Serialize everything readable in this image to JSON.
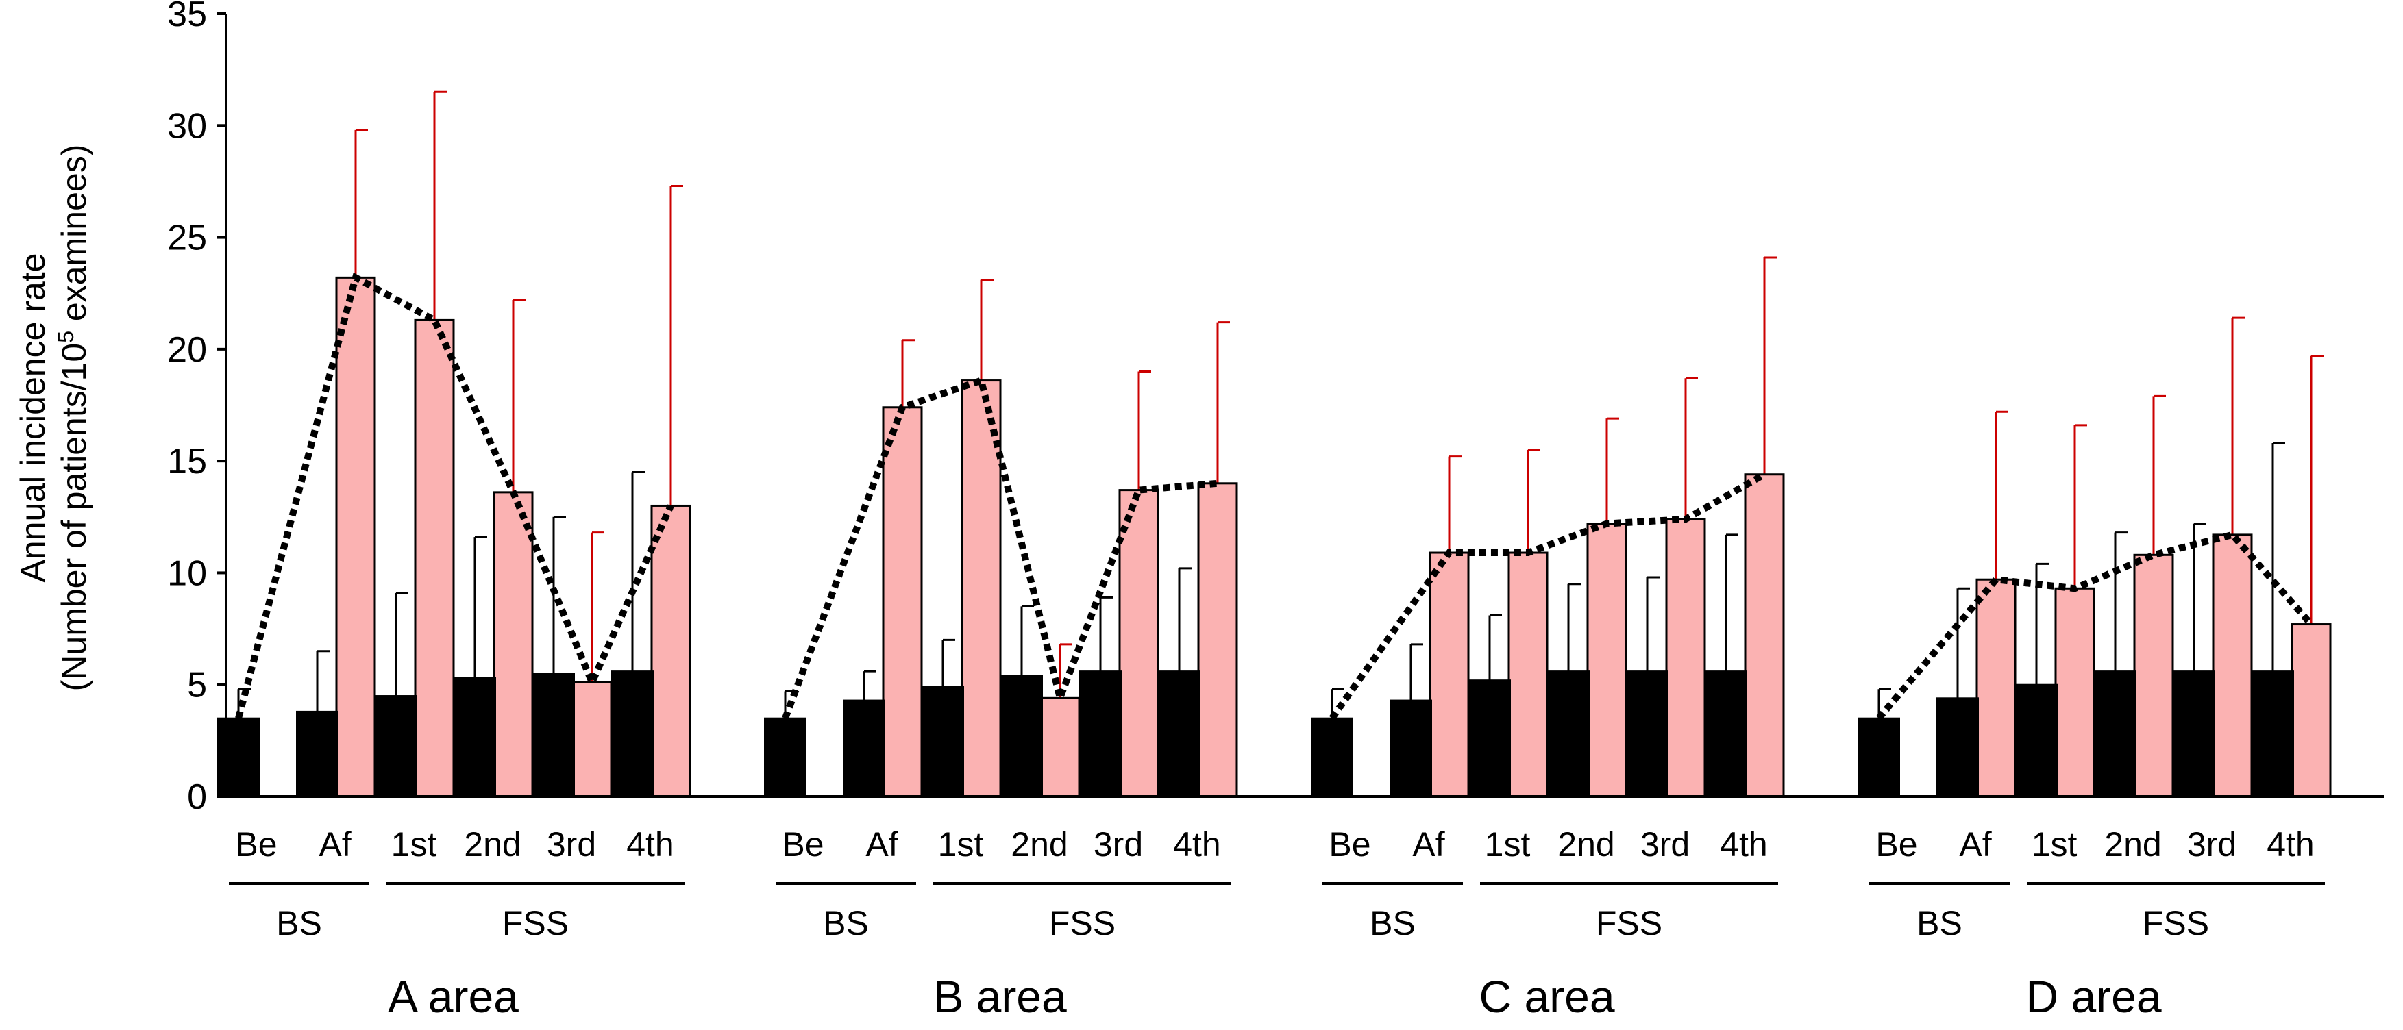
{
  "chart_data": {
    "type": "bar",
    "ylabel_line1": "Annual incidence rate",
    "ylabel_line2_pre": "(Number of patients/10",
    "ylabel_sup": "5",
    "ylabel_line2_post": " examinees)",
    "ylim": [
      0,
      35
    ],
    "yticks": [
      "0",
      "5",
      "10",
      "15",
      "20",
      "25",
      "30",
      "35"
    ],
    "categories": [
      "Be",
      "Af",
      "1st",
      "2nd",
      "3rd",
      "4th"
    ],
    "group_labels": [
      "BS",
      "FSS"
    ],
    "colors": {
      "black_bar": "#000000",
      "pink_bar": "#FBB2B2",
      "pink_error": "#CC0000",
      "black_error": "#000000",
      "trend": "#000000"
    },
    "areas": [
      {
        "name": "A area",
        "black": [
          3.5,
          3.8,
          4.5,
          5.3,
          5.5,
          5.6
        ],
        "black_err": [
          4.8,
          6.5,
          9.1,
          11.6,
          12.5,
          14.5
        ],
        "pink": [
          null,
          23.2,
          21.3,
          13.6,
          5.1,
          13.0
        ],
        "pink_err": [
          null,
          29.8,
          31.5,
          22.2,
          11.8,
          27.3
        ],
        "trend": [
          3.5,
          23.2,
          21.3,
          13.6,
          5.1,
          13.0
        ]
      },
      {
        "name": "B area",
        "black": [
          3.5,
          4.3,
          4.9,
          5.4,
          5.6,
          5.6
        ],
        "black_err": [
          4.7,
          5.6,
          7.0,
          8.5,
          8.9,
          10.2
        ],
        "pink": [
          null,
          17.4,
          18.6,
          4.4,
          13.7,
          14.0
        ],
        "pink_err": [
          null,
          20.4,
          23.1,
          6.8,
          19.0,
          21.2
        ],
        "trend": [
          3.5,
          17.4,
          18.6,
          4.4,
          13.7,
          14.0
        ]
      },
      {
        "name": "C area",
        "black": [
          3.5,
          4.3,
          5.2,
          5.6,
          5.6,
          5.6
        ],
        "black_err": [
          4.8,
          6.8,
          8.1,
          9.5,
          9.8,
          11.7
        ],
        "pink": [
          null,
          10.9,
          10.9,
          12.2,
          12.4,
          14.4
        ],
        "pink_err": [
          null,
          15.2,
          15.5,
          16.9,
          18.7,
          24.1
        ],
        "trend": [
          3.5,
          10.9,
          10.9,
          12.2,
          12.4,
          14.4
        ]
      },
      {
        "name": "D area",
        "black": [
          3.5,
          4.4,
          5.0,
          5.6,
          5.6,
          5.6
        ],
        "black_err": [
          4.8,
          9.3,
          10.4,
          11.8,
          12.2,
          15.8
        ],
        "pink": [
          null,
          9.7,
          9.3,
          10.8,
          11.7,
          7.7
        ],
        "pink_err": [
          null,
          17.2,
          16.6,
          17.9,
          21.4,
          19.7
        ],
        "trend": [
          3.5,
          9.7,
          9.3,
          10.8,
          11.7,
          7.7
        ]
      }
    ]
  }
}
